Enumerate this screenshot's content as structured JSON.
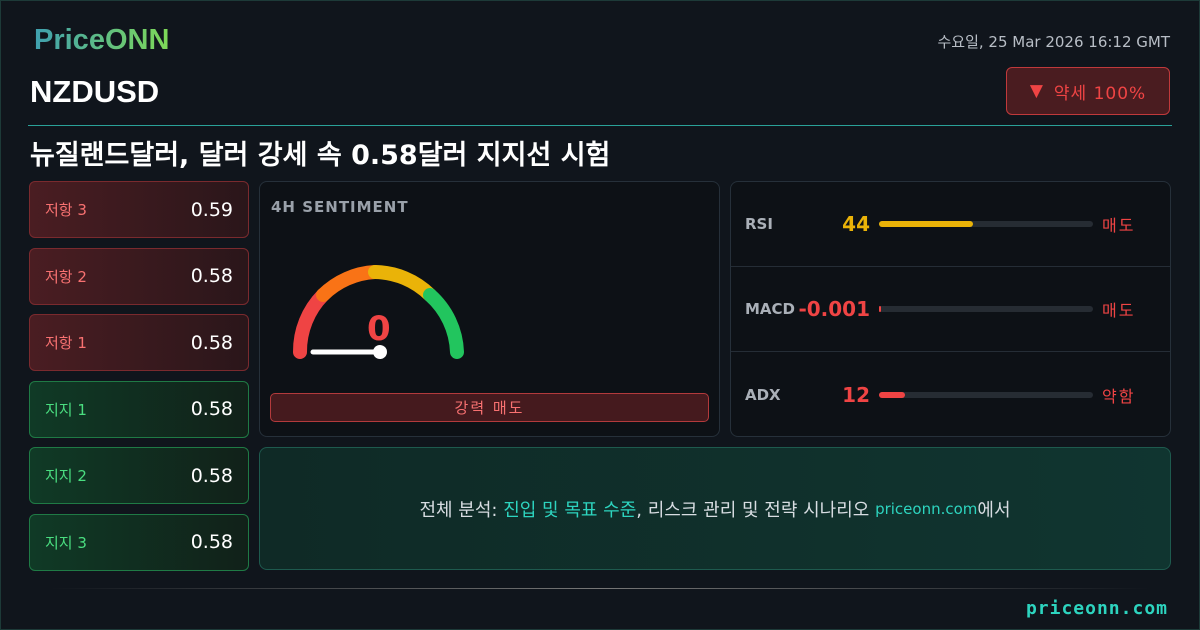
{
  "brand": {
    "logo": "PriceONN",
    "footer_url": "priceonn.com"
  },
  "header": {
    "datetime": "수요일, 25 Mar 2026 16:12 GMT",
    "symbol": "NZDUSD",
    "title": "뉴질랜드달러, 달러 강세 속 0.58달러 지지선 시험",
    "badge": {
      "icon": "triangle-down-icon",
      "label": "약세 100%",
      "color": "#ef4444"
    }
  },
  "levels": [
    {
      "label": "저항 3",
      "value": "0.59",
      "type": "resistance"
    },
    {
      "label": "저항 2",
      "value": "0.58",
      "type": "resistance"
    },
    {
      "label": "저항 1",
      "value": "0.58",
      "type": "resistance"
    },
    {
      "label": "지지 1",
      "value": "0.58",
      "type": "support"
    },
    {
      "label": "지지 2",
      "value": "0.58",
      "type": "support"
    },
    {
      "label": "지지 3",
      "value": "0.58",
      "type": "support"
    }
  ],
  "sentiment": {
    "title": "4H SENTIMENT",
    "value": "0",
    "value_num": 0,
    "label": "강력 매도"
  },
  "indicators": [
    {
      "name": "RSI",
      "value": "44",
      "fill_percent": 44,
      "color": "#eab308",
      "signal": "매도"
    },
    {
      "name": "MACD",
      "value": "-0.001",
      "fill_percent": 0,
      "color": "#ef4444",
      "signal": "매도"
    },
    {
      "name": "ADX",
      "value": "12",
      "fill_percent": 12,
      "color": "#ef4444",
      "signal": "약함"
    }
  ],
  "cta": {
    "prefix": "전체 분석: ",
    "highlight": "진입 및 목표 수준",
    "middle": ", 리스크 관리 및 전략 시나리오 ",
    "site": "priceonn.com",
    "suffix": "에서"
  }
}
